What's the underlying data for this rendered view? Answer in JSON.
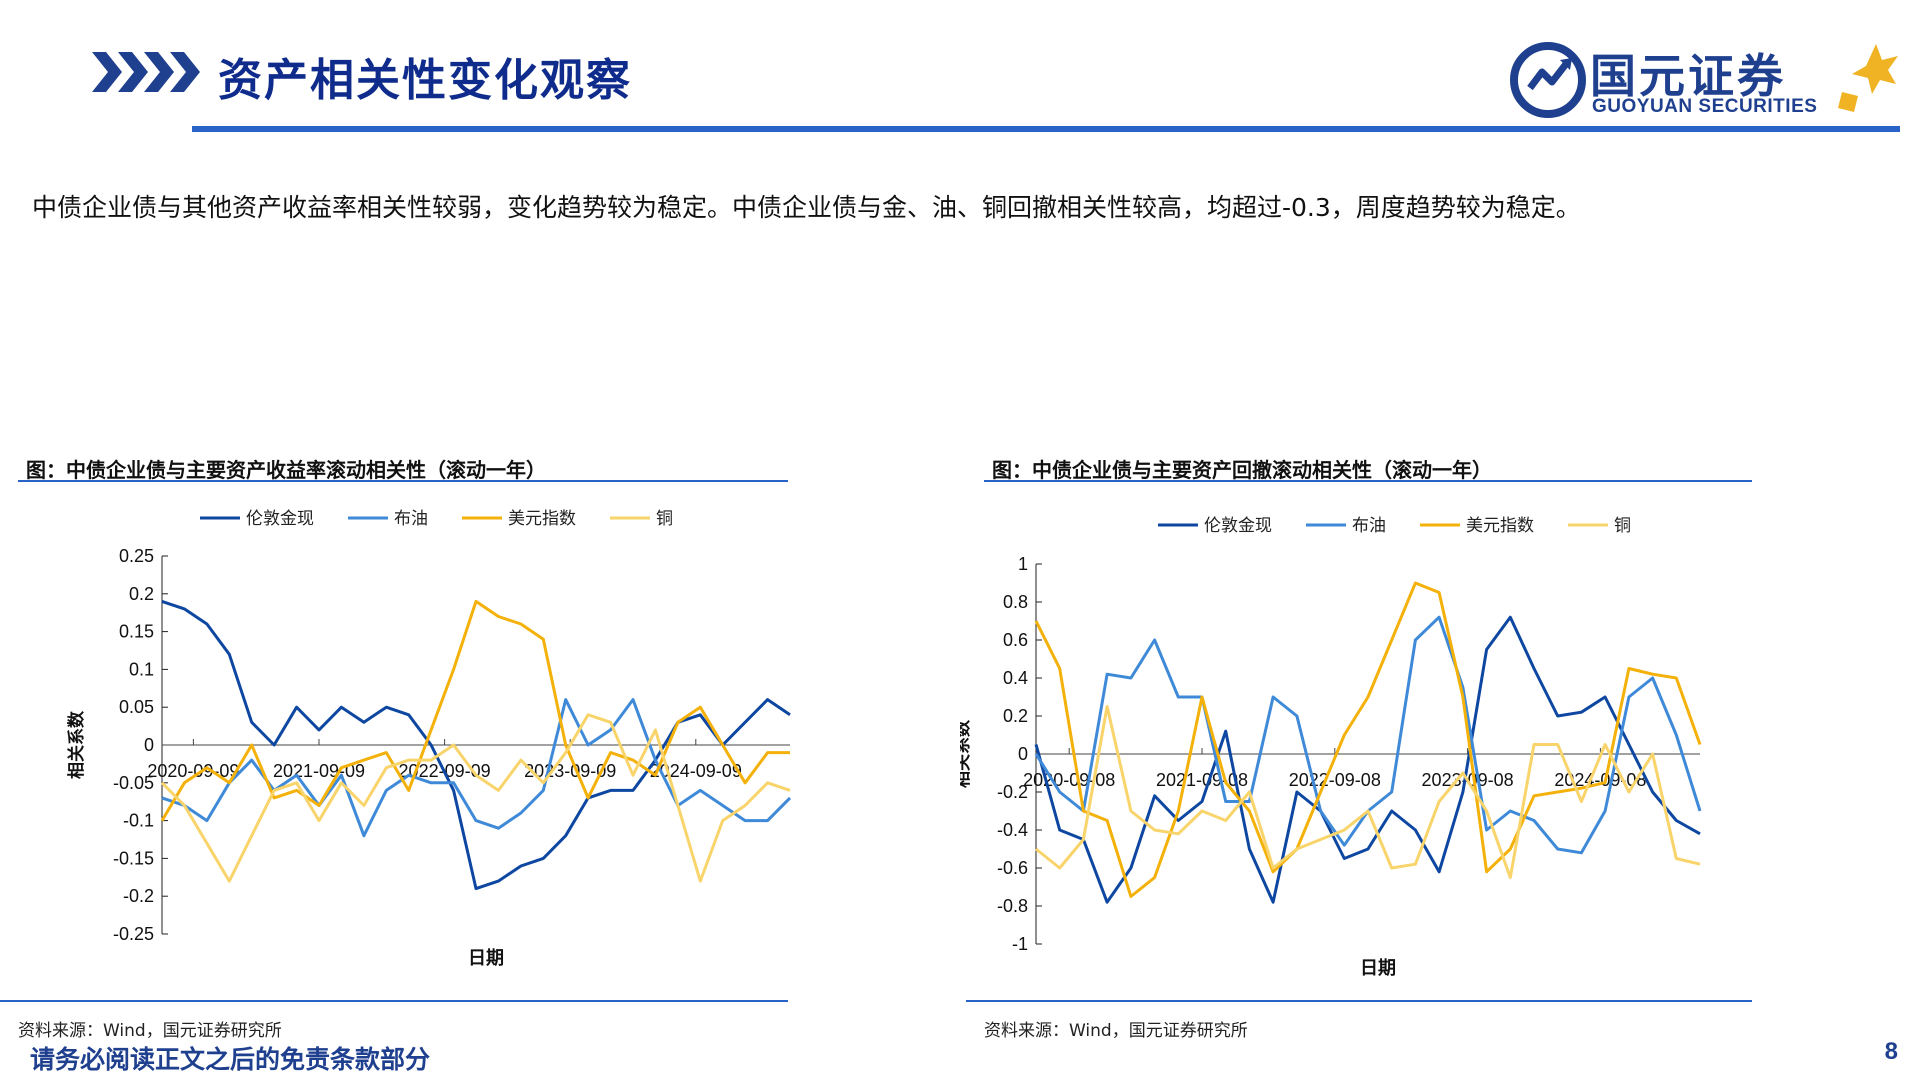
{
  "header": {
    "title": "资产相关性变化观察",
    "logo_cn": "国元证券",
    "logo_en": "GUOYUAN SECURITIES"
  },
  "summary": "中债企业债与其他资产收益率相关性较弱，变化趋势较为稳定。中债企业债与金、油、铜回撤相关性较高，均超过-0.3，周度趋势较为稳定。",
  "colors": {
    "accent": "#2a63c7",
    "brand": "#1f3f8f",
    "gold_series": "#0d47a1",
    "oil_series": "#3f8ad8",
    "usd_series": "#f4b10a",
    "copper_series": "#f8d46b"
  },
  "charts": [
    {
      "title": "图：中债企业债与主要资产收益率滚动相关性（滚动一年）",
      "source": "资料来源：Wind，国元证券研究所"
    },
    {
      "title": "图：中债企业债与主要资产回撤滚动相关性（滚动一年）",
      "source": "资料来源：Wind，国元证券研究所"
    }
  ],
  "chart_data": [
    {
      "type": "line",
      "xlabel": "日期",
      "ylabel": "相关系数",
      "ylim": [
        -0.25,
        0.25
      ],
      "yticks": [
        0.25,
        0.2,
        0.15,
        0.1,
        0.05,
        0,
        -0.05,
        -0.1,
        -0.15,
        -0.2,
        -0.25
      ],
      "x_tick_labels": [
        "2020-09-09",
        "2021-09-09",
        "2022-09-09",
        "2023-09-09",
        "2024-09-09"
      ],
      "legend_position": "top",
      "x": [
        "2020-06",
        "2020-08",
        "2020-10",
        "2020-12",
        "2021-02",
        "2021-04",
        "2021-06",
        "2021-08",
        "2021-10",
        "2021-12",
        "2022-02",
        "2022-04",
        "2022-06",
        "2022-08",
        "2022-10",
        "2022-12",
        "2023-02",
        "2023-04",
        "2023-06",
        "2023-08",
        "2023-10",
        "2023-12",
        "2024-02",
        "2024-04",
        "2024-06",
        "2024-08",
        "2024-10",
        "2024-12",
        "2025-02"
      ],
      "series": [
        {
          "name": "伦敦金现",
          "values": [
            0.19,
            0.18,
            0.16,
            0.12,
            0.03,
            0.0,
            0.05,
            0.02,
            0.05,
            0.03,
            0.05,
            0.04,
            0.0,
            -0.06,
            -0.19,
            -0.18,
            -0.16,
            -0.15,
            -0.12,
            -0.07,
            -0.06,
            -0.06,
            -0.02,
            0.03,
            0.04,
            0.0,
            0.03,
            0.06,
            0.04
          ]
        },
        {
          "name": "布油",
          "values": [
            -0.07,
            -0.08,
            -0.1,
            -0.05,
            -0.02,
            -0.06,
            -0.04,
            -0.08,
            -0.04,
            -0.12,
            -0.06,
            -0.04,
            -0.05,
            -0.05,
            -0.1,
            -0.11,
            -0.09,
            -0.06,
            0.06,
            0.0,
            0.02,
            0.06,
            -0.02,
            -0.08,
            -0.06,
            -0.08,
            -0.1,
            -0.1,
            -0.07
          ]
        },
        {
          "name": "美元指数",
          "values": [
            -0.1,
            -0.05,
            -0.03,
            -0.05,
            0.0,
            -0.07,
            -0.06,
            -0.08,
            -0.03,
            -0.02,
            -0.01,
            -0.06,
            0.02,
            0.1,
            0.19,
            0.17,
            0.16,
            0.14,
            0.0,
            -0.07,
            -0.01,
            -0.02,
            -0.04,
            0.03,
            0.05,
            0.0,
            -0.05,
            -0.01,
            -0.01
          ]
        },
        {
          "name": "铜",
          "values": [
            -0.05,
            -0.08,
            -0.13,
            -0.18,
            -0.12,
            -0.06,
            -0.05,
            -0.1,
            -0.05,
            -0.08,
            -0.03,
            -0.02,
            -0.02,
            0.0,
            -0.04,
            -0.06,
            -0.02,
            -0.05,
            -0.01,
            0.04,
            0.03,
            -0.04,
            0.02,
            -0.08,
            -0.18,
            -0.1,
            -0.08,
            -0.05,
            -0.06
          ]
        }
      ]
    },
    {
      "type": "line",
      "xlabel": "日期",
      "ylabel": "相关系数",
      "ylim": [
        -1,
        1
      ],
      "yticks": [
        1,
        0.8,
        0.6,
        0.4,
        0.2,
        0,
        -0.2,
        -0.4,
        -0.6,
        -0.8,
        -1
      ],
      "x_tick_labels": [
        "2020-09-08",
        "2021-09-08",
        "2022-09-08",
        "2023-09-08",
        "2024-09-08"
      ],
      "legend_position": "top",
      "x": [
        "2020-06",
        "2020-08",
        "2020-10",
        "2020-12",
        "2021-02",
        "2021-04",
        "2021-06",
        "2021-08",
        "2021-10",
        "2021-12",
        "2022-02",
        "2022-04",
        "2022-06",
        "2022-08",
        "2022-10",
        "2022-12",
        "2023-02",
        "2023-04",
        "2023-06",
        "2023-08",
        "2023-10",
        "2023-12",
        "2024-02",
        "2024-04",
        "2024-06",
        "2024-08",
        "2024-10",
        "2024-12",
        "2025-02"
      ],
      "series": [
        {
          "name": "伦敦金现",
          "values": [
            0.05,
            -0.4,
            -0.45,
            -0.78,
            -0.6,
            -0.22,
            -0.35,
            -0.25,
            0.12,
            -0.5,
            -0.78,
            -0.2,
            -0.3,
            -0.55,
            -0.5,
            -0.3,
            -0.4,
            -0.62,
            -0.2,
            0.55,
            0.72,
            0.45,
            0.2,
            0.22,
            0.3,
            0.05,
            -0.2,
            -0.35,
            -0.42
          ]
        },
        {
          "name": "布油",
          "values": [
            0.0,
            -0.2,
            -0.3,
            0.42,
            0.4,
            0.6,
            0.3,
            0.3,
            -0.25,
            -0.25,
            0.3,
            0.2,
            -0.3,
            -0.48,
            -0.3,
            -0.2,
            0.6,
            0.72,
            0.35,
            -0.4,
            -0.3,
            -0.35,
            -0.5,
            -0.52,
            -0.3,
            0.3,
            0.4,
            0.1,
            -0.3
          ]
        },
        {
          "name": "美元指数",
          "values": [
            0.7,
            0.45,
            -0.3,
            -0.35,
            -0.75,
            -0.65,
            -0.3,
            0.3,
            -0.15,
            -0.3,
            -0.62,
            -0.5,
            -0.2,
            0.1,
            0.3,
            0.6,
            0.9,
            0.85,
            0.3,
            -0.62,
            -0.5,
            -0.22,
            -0.2,
            -0.18,
            -0.15,
            0.45,
            0.42,
            0.4,
            0.05
          ]
        },
        {
          "name": "铜",
          "values": [
            -0.5,
            -0.6,
            -0.45,
            0.25,
            -0.3,
            -0.4,
            -0.42,
            -0.3,
            -0.35,
            -0.2,
            -0.6,
            -0.5,
            -0.45,
            -0.4,
            -0.3,
            -0.6,
            -0.58,
            -0.25,
            -0.1,
            -0.3,
            -0.65,
            0.05,
            0.05,
            -0.25,
            0.05,
            -0.2,
            0.0,
            -0.55,
            -0.58
          ]
        }
      ]
    }
  ],
  "footer": {
    "disclaimer": "请务必阅读正文之后的免责条款部分",
    "page_number": "8"
  }
}
